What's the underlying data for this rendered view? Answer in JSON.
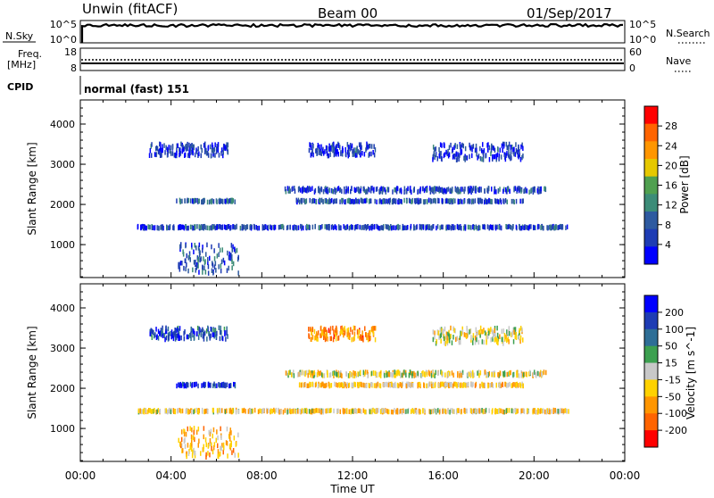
{
  "header": {
    "station": "Unwin (fitACF)",
    "beam": "Beam 00",
    "date": "01/Sep/2017"
  },
  "summary_panels": {
    "nsky": {
      "label": "N.Sky",
      "left_ticks": [
        "10^5",
        "10^0"
      ],
      "right_ticks": [
        "10^5",
        "10^0"
      ],
      "right_label": "N.Search",
      "right_label_style": "dotted"
    },
    "freq": {
      "label_line1": "Freq.",
      "label_line2": "[MHz]",
      "left_ticks": [
        "18",
        "8"
      ],
      "right_ticks": [
        "60",
        "0"
      ],
      "right_label": "Nave",
      "right_label_style": "dotted"
    },
    "cpid": {
      "label": "CPID",
      "mode": "normal (fast) 151"
    }
  },
  "x_axis": {
    "label": "Time UT",
    "ticks": [
      "00:00",
      "04:00",
      "08:00",
      "12:00",
      "16:00",
      "20:00",
      "00:00"
    ],
    "minor_per_major": 4
  },
  "colors": {
    "power_scale": [
      "#0000ff",
      "#1e3cb4",
      "#2e5aa0",
      "#3c8c78",
      "#50a050",
      "#e6c800",
      "#ff9600",
      "#ff6400",
      "#ff0000"
    ],
    "velocity_scale": [
      "#0000ff",
      "#1e3cb4",
      "#2e6e96",
      "#3ca050",
      "#c8c8c8",
      "#ffd200",
      "#ff9600",
      "#ff6400",
      "#ff0000"
    ]
  },
  "chart_data": [
    {
      "type": "heatmap",
      "title": "",
      "quantity": "Power",
      "xlabel": "Time UT",
      "ylabel": "Slant Range [km]",
      "xlim": [
        0,
        24
      ],
      "ylim": [
        180,
        4600
      ],
      "y_ticks": [
        1000,
        2000,
        3000,
        4000
      ],
      "colorbar": {
        "label": "Power [dB]",
        "ticks": [
          "4",
          "8",
          "12",
          "16",
          "20",
          "24",
          "28"
        ],
        "range": [
          0,
          30
        ]
      },
      "echo_bands": [
        {
          "range_km": [
            280,
            1000
          ],
          "hours": [
            4.3,
            7.0
          ],
          "value": 7
        },
        {
          "range_km": [
            1400,
            1450
          ],
          "hours": [
            2.5,
            21.5
          ],
          "value": 6
        },
        {
          "range_km": [
            2050,
            2100
          ],
          "hours": [
            4.2,
            6.8
          ],
          "value": 8
        },
        {
          "range_km": [
            2050,
            2100
          ],
          "hours": [
            9.5,
            19.5
          ],
          "value": 7
        },
        {
          "range_km": [
            2300,
            2400
          ],
          "hours": [
            9.0,
            20.5
          ],
          "value": 6
        },
        {
          "range_km": [
            3200,
            3500
          ],
          "hours": [
            3.0,
            6.5
          ],
          "value": 5
        },
        {
          "range_km": [
            3200,
            3500
          ],
          "hours": [
            10.0,
            13.0
          ],
          "value": 5
        },
        {
          "range_km": [
            3100,
            3500
          ],
          "hours": [
            15.5,
            19.5
          ],
          "value": 5
        }
      ]
    },
    {
      "type": "heatmap",
      "title": "",
      "quantity": "Velocity",
      "xlabel": "Time UT",
      "ylabel": "Slant Range [km]",
      "xlim": [
        0,
        24
      ],
      "ylim": [
        180,
        4600
      ],
      "y_ticks": [
        1000,
        2000,
        3000,
        4000
      ],
      "colorbar": {
        "label": "Velocity [m s^-1]",
        "ticks": [
          "200",
          "100",
          "50",
          "15",
          "-15",
          "-50",
          "-100",
          "-200"
        ],
        "range": [
          -250,
          250
        ]
      },
      "echo_bands": [
        {
          "range_km": [
            280,
            1000
          ],
          "hours": [
            4.3,
            7.0
          ],
          "value": -80
        },
        {
          "range_km": [
            1400,
            1450
          ],
          "hours": [
            2.5,
            21.5
          ],
          "value": -40
        },
        {
          "range_km": [
            2050,
            2100
          ],
          "hours": [
            4.2,
            6.8
          ],
          "value": 180
        },
        {
          "range_km": [
            2050,
            2100
          ],
          "hours": [
            9.5,
            19.5
          ],
          "value": -60
        },
        {
          "range_km": [
            2300,
            2400
          ],
          "hours": [
            9.0,
            20.5
          ],
          "value": -30
        },
        {
          "range_km": [
            3200,
            3500
          ],
          "hours": [
            3.0,
            6.5
          ],
          "value": 150
        },
        {
          "range_km": [
            3200,
            3500
          ],
          "hours": [
            10.0,
            13.0
          ],
          "value": -120
        },
        {
          "range_km": [
            3100,
            3500
          ],
          "hours": [
            15.5,
            19.5
          ],
          "value": -20
        }
      ]
    }
  ]
}
